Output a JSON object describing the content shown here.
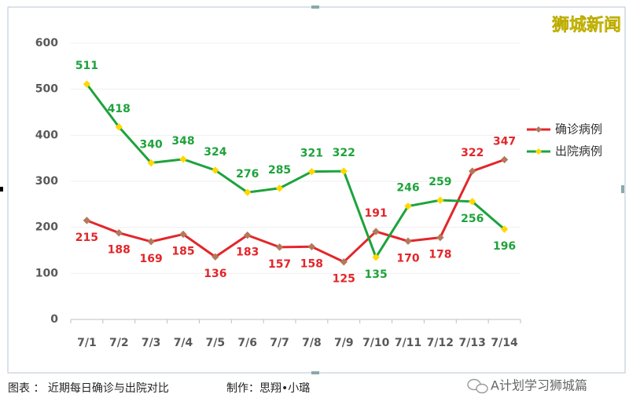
{
  "chart_data": {
    "type": "line",
    "categories": [
      "7/1",
      "7/2",
      "7/3",
      "7/4",
      "7/5",
      "7/6",
      "7/7",
      "7/8",
      "7/9",
      "7/10",
      "7/11",
      "7/12",
      "7/13",
      "7/14"
    ],
    "series": [
      {
        "name": "确诊病例",
        "color": "#e3262a",
        "marker_color": "#b27a5c",
        "values": [
          215,
          188,
          169,
          185,
          136,
          183,
          157,
          158,
          125,
          191,
          170,
          178,
          322,
          347
        ]
      },
      {
        "name": "出院病例",
        "color": "#1ea33c",
        "marker_color": "#ffd800",
        "values": [
          511,
          418,
          340,
          348,
          324,
          276,
          285,
          321,
          322,
          135,
          246,
          259,
          256,
          196
        ]
      }
    ],
    "ylim": [
      0,
      600
    ],
    "yticks": [
      0,
      100,
      200,
      300,
      400,
      500,
      600
    ],
    "grid": true,
    "legend": "right"
  },
  "watermark": "狮城新闻",
  "caption": "图表 ： 近期每日确诊与出院对比",
  "credit": "制作：思翔•小璐",
  "source": "A计划学习狮城篇"
}
